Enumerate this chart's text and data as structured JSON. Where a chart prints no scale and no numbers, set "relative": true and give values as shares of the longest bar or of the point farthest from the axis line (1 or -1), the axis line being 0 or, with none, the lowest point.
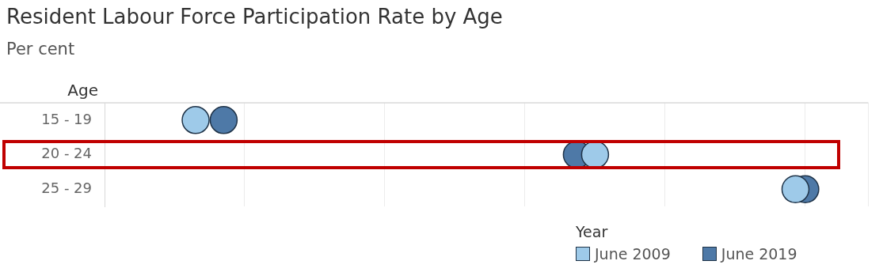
{
  "chart_data": {
    "type": "scatter",
    "title": "Resident Labour Force Participation Rate by Age",
    "subtitle": "Per cent",
    "ylabel": "Age",
    "legend_title": "Year",
    "categories": [
      "15 - 19",
      "20 - 24",
      "25 - 29"
    ],
    "orientation": "horizontal",
    "relative": true,
    "grid": "x",
    "legend": "bottom right",
    "marker": "circle",
    "series": [
      {
        "name": "June 2009",
        "color": "#9ecae9",
        "values": [
          0.13,
          0.7,
          0.986
        ]
      },
      {
        "name": "June 2019",
        "color": "#4e79a7",
        "values": [
          0.17,
          0.674,
          1
        ]
      }
    ]
  }
}
